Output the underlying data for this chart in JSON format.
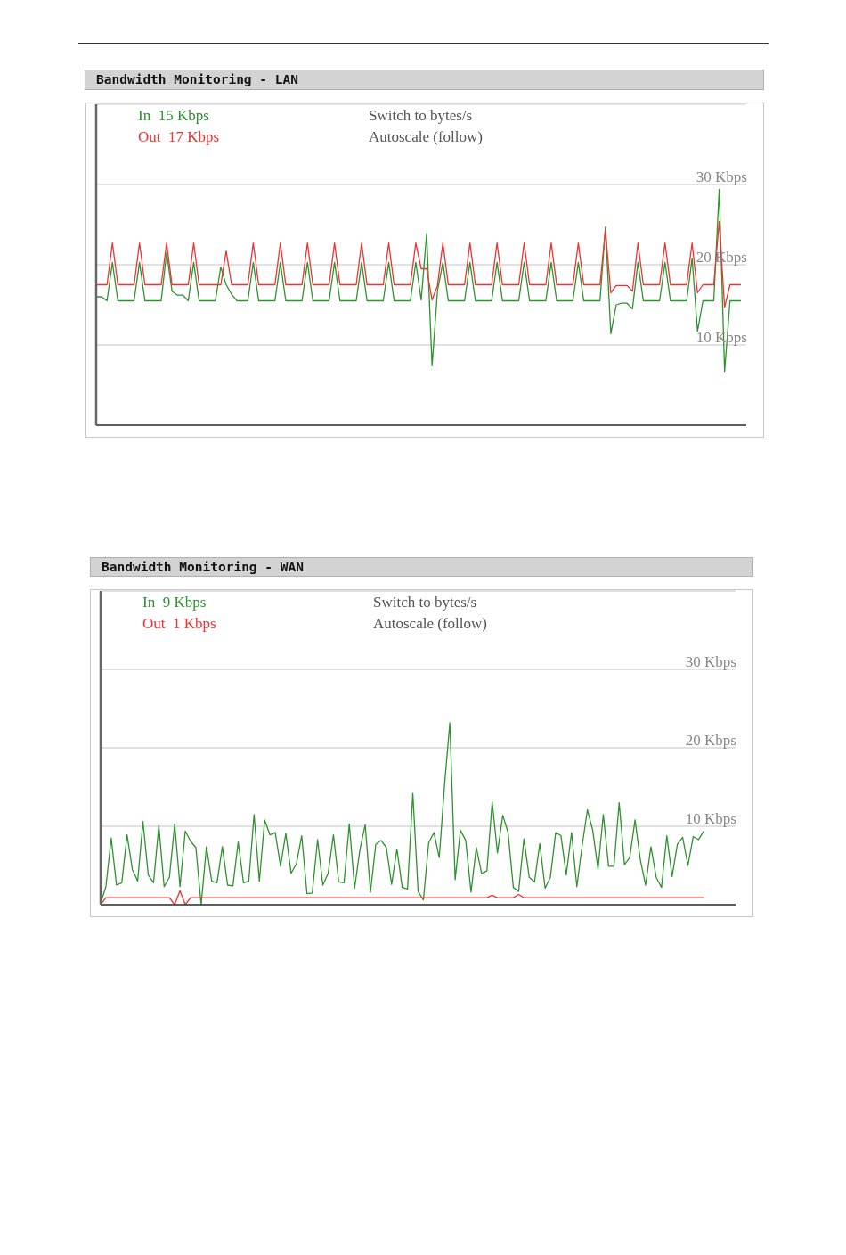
{
  "chart_data": [
    {
      "type": "line",
      "title": "Bandwidth Monitoring - LAN",
      "legend": "top left",
      "grid": "y",
      "tick_labels": "y",
      "annotations": [
        "Switch to bytes/s",
        "Autoscale (follow)"
      ],
      "ylim": [
        0,
        40
      ],
      "yticks": [
        {
          "value": 10,
          "label": "10 Kbps"
        },
        {
          "value": 20,
          "label": "20 Kbps"
        },
        {
          "value": 30,
          "label": "30 Kbps"
        }
      ],
      "marker": "none",
      "line_style": "solid",
      "categories": [
        null,
        null,
        null,
        null,
        null,
        null,
        null,
        null,
        null,
        null,
        null,
        null,
        null,
        null,
        null,
        null,
        null,
        null,
        null,
        null,
        null,
        null,
        null,
        null,
        null,
        null,
        null,
        null,
        null,
        null,
        null,
        null,
        null,
        null,
        null,
        null,
        null,
        null,
        null,
        null,
        null,
        null,
        null,
        null,
        null,
        null,
        null,
        null,
        null,
        null,
        null,
        null,
        null,
        null,
        null,
        null,
        null,
        null,
        null,
        null,
        null,
        null,
        null,
        null,
        null,
        null,
        null,
        null,
        null,
        null,
        null,
        null,
        null,
        null,
        null,
        null,
        null,
        null,
        null,
        null,
        null,
        null,
        null,
        null,
        null,
        null,
        null,
        null,
        null,
        null,
        null,
        null,
        null,
        null,
        null,
        null,
        null,
        null,
        null,
        null,
        null,
        null,
        null,
        null,
        null,
        null,
        null,
        null,
        null,
        null,
        null,
        null,
        null,
        null,
        null,
        null,
        null,
        null,
        null,
        null,
        null
      ],
      "series": [
        {
          "name": "In  15 Kbps",
          "color": "#2e922e",
          "values": [
            16,
            16,
            15.5,
            20.3,
            15.5,
            15.5,
            15.5,
            15.5,
            20.3,
            15.5,
            15.5,
            15.5,
            15.5,
            21.5,
            16.7,
            16.2,
            16.2,
            15.5,
            20.3,
            15.5,
            15.5,
            15.5,
            15.5,
            19.7,
            17.5,
            16.3,
            15.5,
            15.5,
            15.5,
            20.3,
            15.5,
            15.5,
            15.5,
            15.5,
            20.3,
            15.5,
            15.5,
            15.5,
            15.5,
            20.3,
            15.5,
            15.5,
            15.5,
            15.5,
            20.3,
            15.5,
            15.5,
            15.5,
            15.5,
            20.3,
            15.5,
            15.5,
            15.5,
            15.5,
            20.3,
            15.5,
            15.5,
            15.5,
            15.5,
            20.3,
            15.6,
            23.9,
            7.4,
            16.7,
            20.3,
            15.5,
            15.5,
            15.5,
            15.5,
            20.3,
            15.5,
            15.5,
            15.5,
            15.5,
            20.3,
            15.5,
            15.5,
            15.5,
            15.5,
            20.3,
            15.5,
            15.5,
            15.5,
            15.5,
            20.3,
            15.5,
            15.5,
            15.5,
            15.5,
            20.3,
            15.5,
            15.5,
            15.5,
            15.5,
            24.7,
            11.4,
            15,
            15.2,
            15.2,
            14.5,
            20.3,
            15.5,
            15.5,
            15.5,
            15.5,
            20.3,
            15.5,
            15.5,
            15.5,
            15.5,
            20.8,
            11.7,
            15.5,
            15.5,
            15.5,
            29.4,
            6.7,
            15.5,
            15.5,
            15.5,
            null
          ]
        },
        {
          "name": "Out  17 Kbps",
          "color": "#ee3333",
          "values": [
            17.5,
            17.5,
            17.5,
            22.7,
            17.5,
            17.5,
            17.5,
            17.5,
            22.7,
            17.5,
            17.5,
            17.5,
            17.5,
            22.7,
            17.5,
            17.5,
            17.5,
            17.5,
            22.7,
            17.5,
            17.5,
            17.5,
            17.5,
            17.5,
            21.7,
            17.5,
            17.5,
            17.5,
            17.5,
            22.7,
            17.5,
            17.5,
            17.5,
            17.5,
            22.7,
            17.5,
            17.5,
            17.5,
            17.5,
            22.7,
            17.5,
            17.5,
            17.5,
            17.5,
            22.7,
            17.5,
            17.5,
            17.5,
            17.5,
            22.7,
            17.5,
            17.5,
            17.5,
            17.5,
            22.7,
            17.5,
            17.5,
            17.5,
            17.5,
            22.7,
            19.5,
            19.5,
            15.6,
            17.4,
            22.7,
            17.5,
            17.5,
            17.5,
            17.5,
            22.7,
            17.5,
            17.5,
            17.5,
            17.5,
            22.7,
            17.5,
            17.5,
            17.5,
            17.5,
            22.7,
            17.5,
            17.5,
            17.5,
            17.5,
            22.7,
            17.5,
            17.5,
            17.5,
            17.5,
            22.7,
            17.5,
            17.5,
            17.5,
            17.5,
            24.3,
            16.5,
            17.4,
            17.4,
            17.4,
            16.7,
            22.7,
            17.5,
            17.5,
            17.5,
            17.5,
            22.7,
            17.5,
            17.5,
            17.5,
            17.5,
            22.7,
            16.5,
            17.5,
            17.5,
            17.5,
            25.4,
            14.7,
            17.5,
            17.5,
            17.5,
            null
          ]
        }
      ]
    },
    {
      "type": "line",
      "title": "Bandwidth Monitoring - WAN",
      "legend": "top left",
      "grid": "y",
      "tick_labels": "y",
      "annotations": [
        "Switch to bytes/s",
        "Autoscale (follow)"
      ],
      "ylim": [
        0,
        40
      ],
      "yticks": [
        {
          "value": 10,
          "label": "10 Kbps"
        },
        {
          "value": 20,
          "label": "20 Kbps"
        },
        {
          "value": 30,
          "label": "30 Kbps"
        }
      ],
      "marker": "none",
      "line_style": "solid",
      "categories": [
        null,
        null,
        null,
        null,
        null,
        null,
        null,
        null,
        null,
        null,
        null,
        null,
        null,
        null,
        null,
        null,
        null,
        null,
        null,
        null,
        null,
        null,
        null,
        null,
        null,
        null,
        null,
        null,
        null,
        null,
        null,
        null,
        null,
        null,
        null,
        null,
        null,
        null,
        null,
        null,
        null,
        null,
        null,
        null,
        null,
        null,
        null,
        null,
        null,
        null,
        null,
        null,
        null,
        null,
        null,
        null,
        null,
        null,
        null,
        null,
        null,
        null,
        null,
        null,
        null,
        null,
        null,
        null,
        null,
        null,
        null,
        null,
        null,
        null,
        null,
        null,
        null,
        null,
        null,
        null,
        null,
        null,
        null,
        null,
        null,
        null,
        null,
        null,
        null,
        null,
        null,
        null,
        null,
        null,
        null,
        null,
        null,
        null,
        null,
        null,
        null,
        null,
        null,
        null,
        null,
        null,
        null,
        null,
        null,
        null,
        null,
        null,
        null,
        null,
        null,
        null,
        null,
        null,
        null,
        null,
        null
      ],
      "series": [
        {
          "name": "In  9 Kbps",
          "color": "#2e922e",
          "values": [
            0.2,
            2.3,
            8.5,
            2.5,
            2.8,
            8.9,
            4.5,
            3,
            10.6,
            3.8,
            2.8,
            10.1,
            2.3,
            3.5,
            10.3,
            2.3,
            9.4,
            8.1,
            7.3,
            0,
            7.4,
            3,
            2.8,
            7.4,
            2.5,
            2.4,
            8,
            2.8,
            3,
            11.5,
            3,
            10.8,
            8.9,
            9.2,
            4.9,
            9.1,
            4,
            5.2,
            8.8,
            1.4,
            1.5,
            8.3,
            2.5,
            4,
            8.9,
            2.9,
            2.8,
            10.3,
            2.1,
            7,
            10.2,
            1.6,
            7.7,
            8.2,
            7.3,
            2.6,
            7.1,
            2.2,
            2,
            14.2,
            1.7,
            0.6,
            7.9,
            9.2,
            6,
            15.3,
            23.2,
            3.2,
            9.5,
            8.2,
            1.6,
            7.3,
            4,
            4.3,
            13.1,
            6.6,
            11.4,
            9.2,
            2.2,
            1.7,
            8.4,
            3.5,
            2.9,
            7.8,
            2.1,
            3.5,
            9.2,
            8.8,
            3.8,
            9.2,
            2.3,
            7.5,
            12.1,
            9.5,
            4.5,
            11.5,
            4.9,
            4.9,
            13,
            5.1,
            6,
            10.8,
            5.7,
            2.5,
            7.4,
            3.5,
            2.2,
            8.8,
            3.6,
            7.7,
            8.6,
            5,
            8.7,
            8.3,
            9.4,
            null,
            null,
            null,
            null,
            null,
            null
          ]
        },
        {
          "name": "Out  1 Kbps",
          "color": "#ee3333",
          "values": [
            0,
            0.9,
            0.9,
            0.9,
            0.9,
            0.9,
            0.9,
            0.9,
            0.9,
            0.9,
            0.9,
            0.9,
            0.9,
            0.9,
            0,
            1.8,
            0,
            0.9,
            0.9,
            0.9,
            0.9,
            0.9,
            0.9,
            0.9,
            0.9,
            0.9,
            0.9,
            0.9,
            0.9,
            0.9,
            0.9,
            0.9,
            0.9,
            0.9,
            0.9,
            0.9,
            0.9,
            0.9,
            0.9,
            0.9,
            0.9,
            0.9,
            0.9,
            0.9,
            0.9,
            0.9,
            0.9,
            0.9,
            0.9,
            0.9,
            0.9,
            0.9,
            0.9,
            0.9,
            0.9,
            0.9,
            0.9,
            0.9,
            0.9,
            0.9,
            0.9,
            0.9,
            0.9,
            0.9,
            0.9,
            0.9,
            0.9,
            0.9,
            0.9,
            0.9,
            0.9,
            0.9,
            0.9,
            0.9,
            1.2,
            0.9,
            0.9,
            0.9,
            0.9,
            1.3,
            0.9,
            0.9,
            0.9,
            0.9,
            0.9,
            0.9,
            0.9,
            0.9,
            0.9,
            0.9,
            0.9,
            0.9,
            0.9,
            0.9,
            0.9,
            0.9,
            0.9,
            0.9,
            0.9,
            0.9,
            0.9,
            0.9,
            0.9,
            0.9,
            0.9,
            0.9,
            0.9,
            0.9,
            0.9,
            0.9,
            0.9,
            0.9,
            0.9,
            0.9,
            0.9,
            null,
            null,
            null,
            null,
            null,
            null
          ]
        }
      ]
    }
  ]
}
